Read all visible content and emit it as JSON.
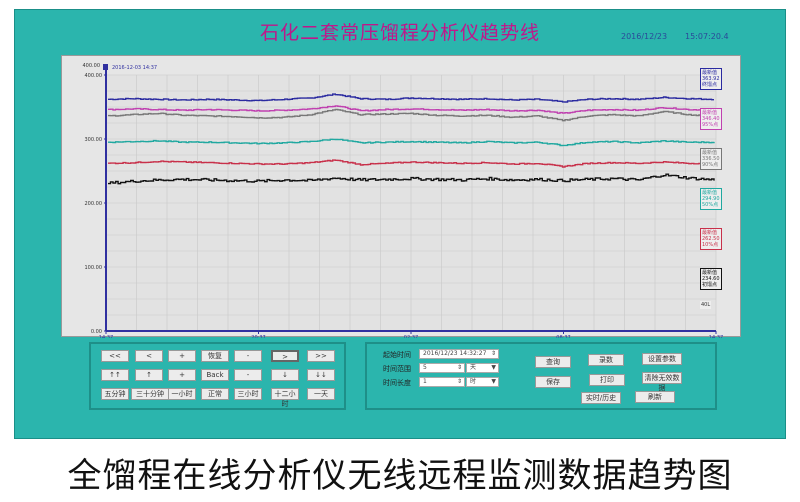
{
  "header": {
    "title": "石化二套常压馏程分析仪趋势线",
    "date": "2016/12/23",
    "time": "15:07:20.4"
  },
  "caption": "全馏程在线分析仪无线远程监测数据趋势图",
  "chart_data": {
    "type": "line",
    "cursor_label": "2016-12-03 14:37",
    "ylim": [
      0,
      400
    ],
    "yticks": [
      "0.00",
      "100.00",
      "200.00",
      "300.00",
      "400.00"
    ],
    "ytop_label": "400.00",
    "xticks": [
      {
        "time": "14:37",
        "date": "2016-12-03"
      },
      {
        "time": "20:37",
        "date": "2016-12-04"
      },
      {
        "time": "02:37",
        "date": "2016-12-06"
      },
      {
        "time": "08:37",
        "date": "2016-12-07"
      },
      {
        "time": "14:37",
        "date": "2016-12-08"
      }
    ],
    "grid": true,
    "legend_placement": "right",
    "extra_label": "40L",
    "series": [
      {
        "color": "#2a2aa0",
        "legend": [
          "最新值",
          "363.92",
          "终馏点"
        ],
        "values": [
          362,
          363,
          362,
          361,
          362,
          361,
          360,
          362,
          364,
          370,
          363,
          362,
          364,
          363,
          362,
          363,
          361,
          362,
          358,
          362,
          363,
          362,
          365,
          363,
          362
        ]
      },
      {
        "color": "#c040b0",
        "legend": [
          "最新值",
          "346.40",
          "95%点"
        ],
        "values": [
          346,
          347,
          346,
          345,
          346,
          345,
          344,
          345,
          347,
          352,
          344,
          346,
          347,
          346,
          345,
          346,
          344,
          345,
          340,
          345,
          346,
          345,
          349,
          346,
          345
        ]
      },
      {
        "color": "#777777",
        "legend": [
          "最新值",
          "336.50",
          "90%点"
        ],
        "values": [
          336,
          338,
          340,
          337,
          336,
          335,
          333,
          334,
          338,
          346,
          338,
          339,
          340,
          337,
          336,
          337,
          334,
          336,
          329,
          336,
          338,
          336,
          343,
          338,
          335
        ]
      },
      {
        "color": "#20a8a0",
        "legend": [
          "最新值",
          "294.90",
          "50%点"
        ],
        "values": [
          295,
          296,
          297,
          295,
          295,
          294,
          293,
          294,
          296,
          300,
          294,
          295,
          296,
          295,
          294,
          296,
          294,
          295,
          290,
          295,
          296,
          294,
          297,
          295,
          295
        ]
      },
      {
        "color": "#c8304a",
        "legend": [
          "最新值",
          "262.50",
          "10%点"
        ],
        "values": [
          262,
          263,
          265,
          264,
          263,
          262,
          261,
          261,
          263,
          267,
          260,
          262,
          264,
          263,
          262,
          263,
          261,
          262,
          257,
          262,
          263,
          262,
          264,
          262,
          262
        ]
      },
      {
        "color": "#111111",
        "legend": [
          "最新值",
          "234.60",
          "初馏点"
        ],
        "values": [
          231,
          234,
          236,
          237,
          236,
          235,
          234,
          236,
          235,
          239,
          236,
          237,
          238,
          237,
          236,
          238,
          236,
          237,
          235,
          237,
          238,
          236,
          244,
          239,
          236
        ]
      }
    ]
  },
  "nav": {
    "rows": [
      [
        "<<",
        "<",
        "+",
        "恢复",
        "-",
        ">",
        ">>"
      ],
      [
        "↑↑",
        "↑",
        "+",
        "Back",
        "-",
        "↓",
        "↓↓"
      ],
      [
        "五分钟",
        "三十分钟",
        "一小时",
        "正常",
        "三小时",
        "十二小时",
        "一天"
      ]
    ]
  },
  "query": {
    "start_label": "起始时间",
    "start_value": "2016/12/23  14:32:27",
    "range_label": "时间范围",
    "range_value": "5",
    "range_unit": "天",
    "length_label": "时间长度",
    "length_value": "1",
    "length_unit": "时",
    "buttons": {
      "query": "查询",
      "save": "保存",
      "realtime": "实时/历史",
      "record": "录数",
      "print": "打印",
      "refresh": "刷新",
      "settings": "设置参数",
      "clear": "清除无效数据"
    }
  }
}
